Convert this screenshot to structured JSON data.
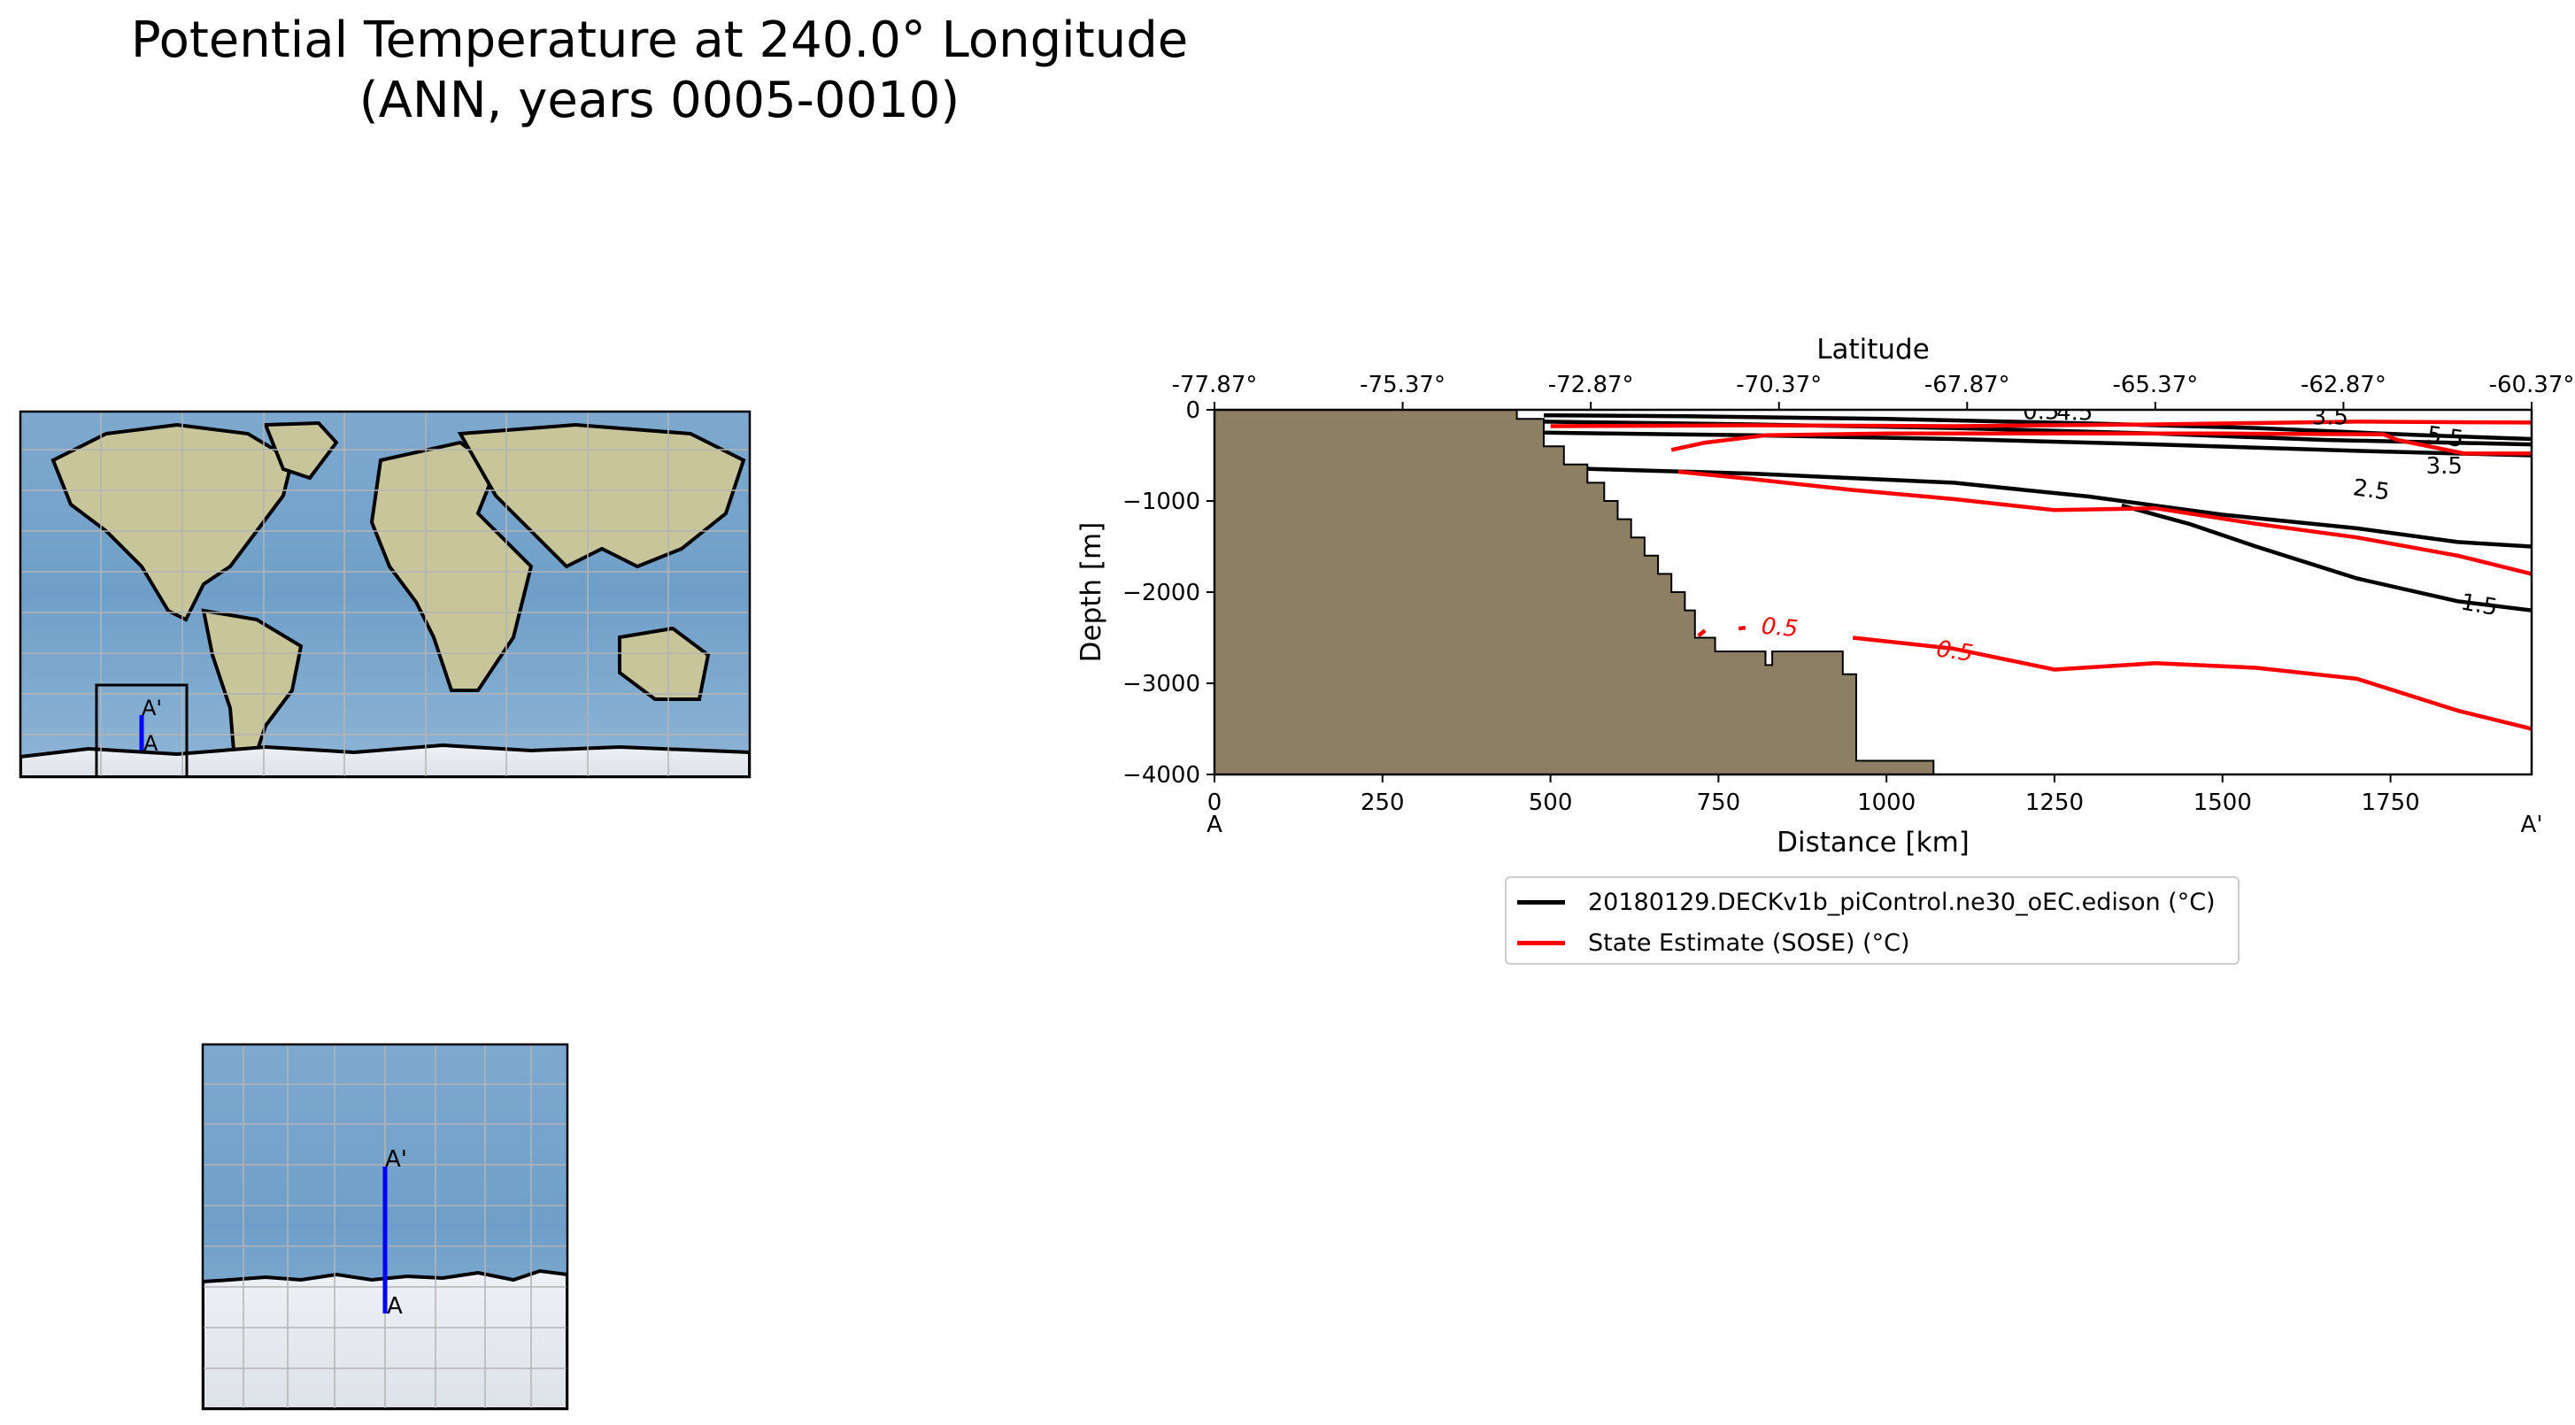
{
  "title_line1": "Potential Temperature at 240.0° Longitude",
  "title_line2": "(ANN, years 0005-0010)",
  "maps": {
    "global_marker_A": "A",
    "global_marker_A_prime": "A'",
    "inset_marker_A": "A",
    "inset_marker_A_prime": "A'",
    "transect_color": "#0000ff"
  },
  "chart_data": {
    "type": "line",
    "subtype": "contour-section",
    "xlabel": "Distance [km]",
    "ylabel": "Depth [m]",
    "top_xlabel": "Latitude",
    "xlim": [
      0,
      1960
    ],
    "ylim": [
      -4000,
      0
    ],
    "x_ticks": [
      0,
      250,
      500,
      750,
      1000,
      1250,
      1500,
      1750
    ],
    "y_ticks": [
      0,
      -1000,
      -2000,
      -3000,
      -4000
    ],
    "x_tick_labels": [
      "0",
      "250",
      "500",
      "750",
      "1000",
      "1250",
      "1500",
      "1750"
    ],
    "y_tick_labels": [
      "0",
      "−1000",
      "−2000",
      "−3000",
      "−4000"
    ],
    "top_tick_labels": [
      "-77.87°",
      "-75.37°",
      "-72.87°",
      "-70.37°",
      "-67.87°",
      "-65.37°",
      "-62.87°",
      "-60.37°"
    ],
    "end_labels": {
      "start": "A",
      "end": "A'"
    },
    "bathymetry_color": "#8c7f64",
    "bathymetry": [
      [
        0,
        -4000
      ],
      [
        0,
        0
      ],
      [
        450,
        0
      ],
      [
        450,
        -100
      ],
      [
        490,
        -100
      ],
      [
        490,
        -400
      ],
      [
        520,
        -400
      ],
      [
        520,
        -600
      ],
      [
        555,
        -600
      ],
      [
        555,
        -800
      ],
      [
        580,
        -800
      ],
      [
        580,
        -1000
      ],
      [
        600,
        -1000
      ],
      [
        600,
        -1200
      ],
      [
        620,
        -1200
      ],
      [
        620,
        -1400
      ],
      [
        640,
        -1400
      ],
      [
        640,
        -1600
      ],
      [
        660,
        -1600
      ],
      [
        660,
        -1800
      ],
      [
        680,
        -1800
      ],
      [
        680,
        -2000
      ],
      [
        700,
        -2000
      ],
      [
        700,
        -2200
      ],
      [
        715,
        -2200
      ],
      [
        715,
        -2500
      ],
      [
        745,
        -2500
      ],
      [
        745,
        -2650
      ],
      [
        820,
        -2650
      ],
      [
        820,
        -2800
      ],
      [
        830,
        -2800
      ],
      [
        830,
        -2650
      ],
      [
        935,
        -2650
      ],
      [
        935,
        -2900
      ],
      [
        955,
        -2900
      ],
      [
        955,
        -3850
      ],
      [
        1070,
        -3850
      ],
      [
        1070,
        -4000
      ]
    ],
    "series": [
      {
        "name": "20180129.DECKv1b_piControl.ne30_oEC.edison (°C)",
        "color": "#000000",
        "contours": [
          {
            "level": "5.5",
            "points": [
              [
                490,
                -60
              ],
              [
                700,
                -70
              ],
              [
                1000,
                -100
              ],
              [
                1300,
                -150
              ],
              [
                1550,
                -200
              ],
              [
                1800,
                -280
              ],
              [
                1960,
                -320
              ]
            ]
          },
          {
            "level": "4.5",
            "points": [
              [
                490,
                -130
              ],
              [
                800,
                -160
              ],
              [
                1100,
                -200
              ],
              [
                1400,
                -260
              ],
              [
                1650,
                -330
              ],
              [
                1960,
                -380
              ]
            ]
          },
          {
            "level": "3.5",
            "points": [
              [
                490,
                -250
              ],
              [
                800,
                -280
              ],
              [
                1100,
                -320
              ],
              [
                1400,
                -380
              ],
              [
                1700,
                -450
              ],
              [
                1960,
                -500
              ]
            ]
          },
          {
            "level": "2.5",
            "points": [
              [
                520,
                -640
              ],
              [
                800,
                -700
              ],
              [
                1100,
                -800
              ],
              [
                1300,
                -950
              ],
              [
                1500,
                -1150
              ],
              [
                1700,
                -1300
              ],
              [
                1850,
                -1450
              ],
              [
                1960,
                -1500
              ]
            ]
          },
          {
            "level": "1.5",
            "points": [
              [
                1350,
                -1050
              ],
              [
                1450,
                -1250
              ],
              [
                1550,
                -1500
              ],
              [
                1700,
                -1850
              ],
              [
                1850,
                -2100
              ],
              [
                1960,
                -2200
              ]
            ]
          }
        ],
        "labels_shown": [
          "4.5",
          "0.5",
          "3.5",
          "5.5",
          "2.5",
          "1.5"
        ]
      },
      {
        "name": "State Estimate (SOSE) (°C)",
        "color": "#ff0000",
        "contours": [
          {
            "level": "0.5",
            "points": [
              [
                720,
                -2480
              ],
              [
                730,
                -2420
              ]
            ]
          },
          {
            "level": "0.5",
            "points": [
              [
                780,
                -2400
              ],
              [
                790,
                -2390
              ]
            ]
          },
          {
            "level": "0.5",
            "points": [
              [
                950,
                -2500
              ],
              [
                1100,
                -2620
              ],
              [
                1250,
                -2850
              ],
              [
                1400,
                -2780
              ],
              [
                1550,
                -2830
              ],
              [
                1700,
                -2950
              ],
              [
                1850,
                -3300
              ],
              [
                1960,
                -3500
              ]
            ]
          },
          {
            "level": "1.5",
            "points": [
              [
                690,
                -680
              ],
              [
                800,
                -760
              ],
              [
                950,
                -880
              ],
              [
                1100,
                -980
              ],
              [
                1250,
                -1100
              ],
              [
                1400,
                -1080
              ],
              [
                1550,
                -1250
              ],
              [
                1700,
                -1400
              ],
              [
                1850,
                -1600
              ],
              [
                1960,
                -1800
              ]
            ]
          },
          {
            "level": "2.5",
            "points": [
              [
                680,
                -440
              ],
              [
                730,
                -360
              ],
              [
                820,
                -280
              ],
              [
                1000,
                -260
              ],
              [
                1200,
                -260
              ],
              [
                1500,
                -260
              ],
              [
                1740,
                -270
              ],
              [
                1760,
                -330
              ],
              [
                1860,
                -480
              ],
              [
                1960,
                -480
              ]
            ]
          },
          {
            "level": "3.5",
            "points": [
              [
                500,
                -180
              ],
              [
                800,
                -170
              ],
              [
                1100,
                -180
              ],
              [
                1400,
                -160
              ],
              [
                1700,
                -130
              ],
              [
                1960,
                -140
              ]
            ]
          }
        ]
      }
    ],
    "contour_label_values": [
      "4.5",
      "0.5",
      "3.5",
      "5.5",
      "3.5",
      "2.5",
      "1.5",
      "0.5",
      "0.5",
      "5"
    ]
  }
}
